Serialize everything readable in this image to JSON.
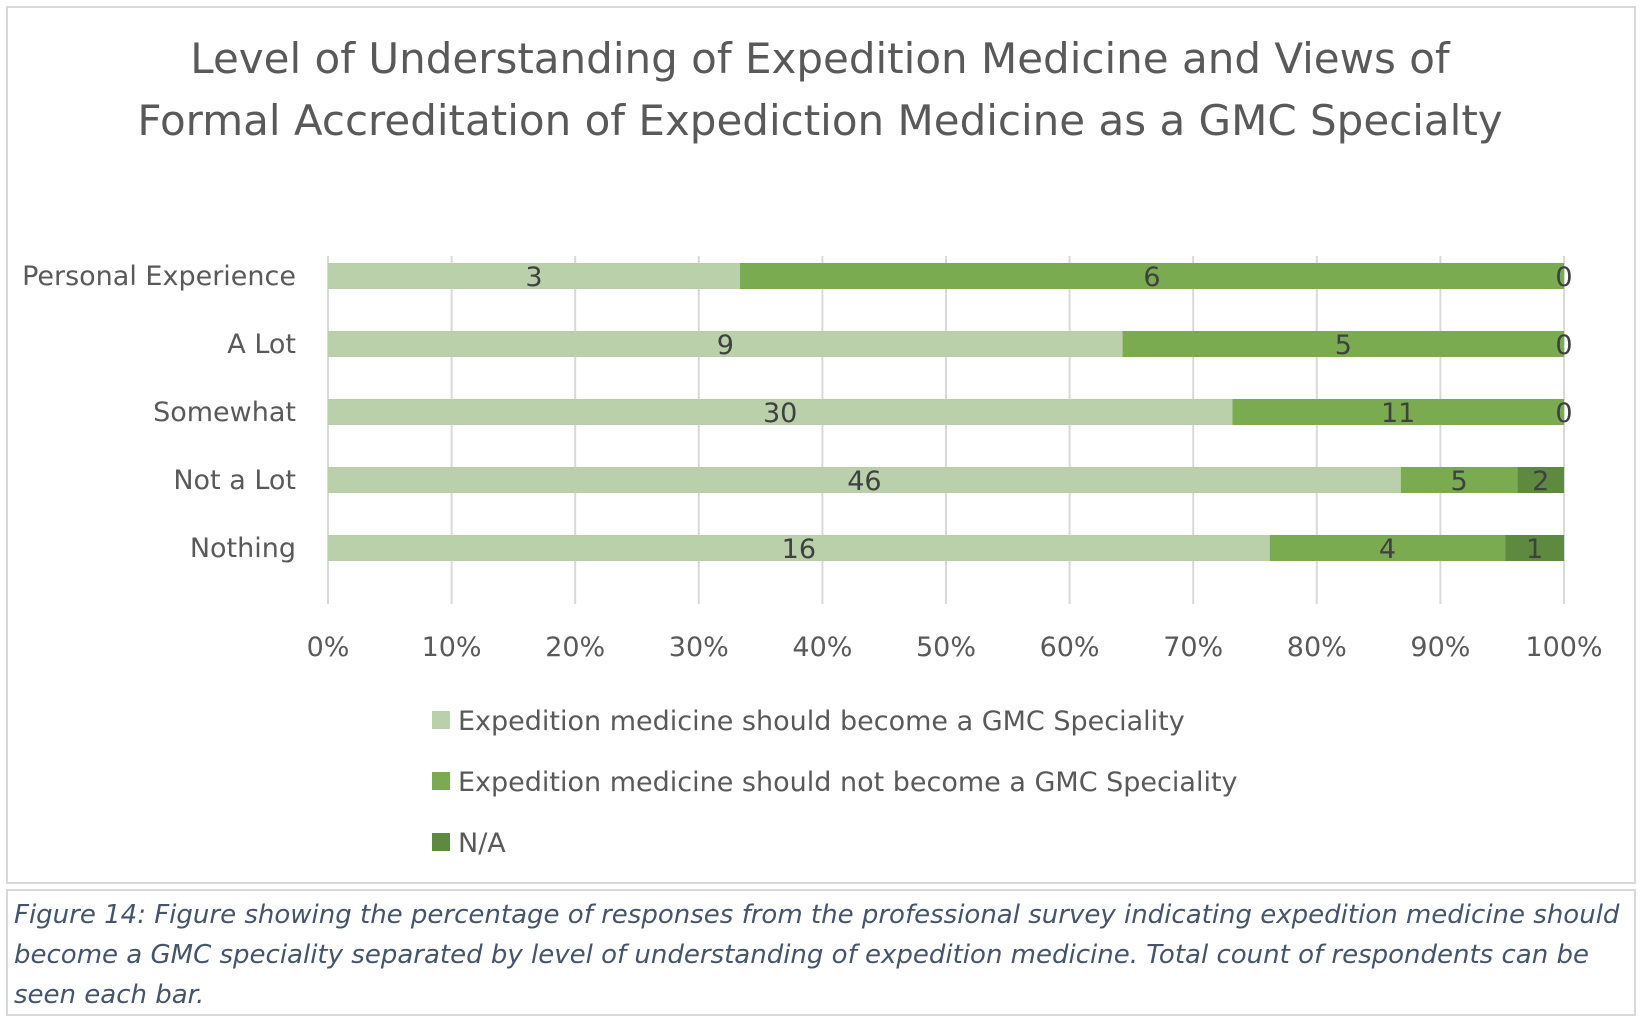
{
  "chart_data": {
    "type": "bar",
    "orientation": "horizontal",
    "stacked": "percent",
    "title": "Level of Understanding of Expedition Medicine and Views of Formal Accreditation of Expediction Medicine as a GMC Specialty",
    "categories": [
      "Personal Experience",
      "A Lot ",
      "Somewhat",
      "Not a Lot ",
      "Nothing"
    ],
    "series": [
      {
        "name": "Expedition medicine should become a GMC Speciality",
        "values": [
          3,
          9,
          30,
          46,
          16
        ],
        "color": "#b9d0ab"
      },
      {
        "name": "Expedition medicine should not become a GMC Speciality",
        "values": [
          6,
          5,
          11,
          5,
          4
        ],
        "color": "#7aab51"
      },
      {
        "name": "N/A",
        "values": [
          0,
          0,
          0,
          2,
          1
        ],
        "color": "#5d8a3f"
      }
    ],
    "x_ticks": [
      "0%",
      "10%",
      "20%",
      "30%",
      "40%",
      "50%",
      "60%",
      "70%",
      "80%",
      "90%",
      "100%"
    ],
    "xlim": [
      0,
      100
    ],
    "grid": true,
    "data_labels": true,
    "legend": "bottom"
  },
  "caption": "Figure 14: Figure showing the percentage of responses from the professional survey indicating expedition medicine should become a GMC speciality separated by level of understanding of expedition medicine. Total count of respondents can be seen each bar.",
  "colors": {
    "text": "#595959",
    "label_text": "#404040",
    "grid": "#d9d9d9",
    "caption": "#44546a"
  }
}
